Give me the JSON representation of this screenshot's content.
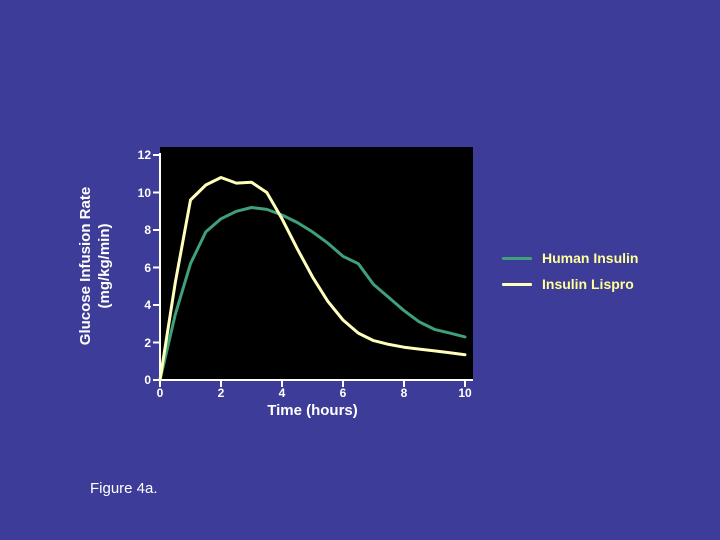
{
  "slide": {
    "caption": "Figure 4a."
  },
  "colors": {
    "background": "#3e3c99",
    "plot_background": "#000000",
    "axis": "#ffffff",
    "text": "#ffffff",
    "legend_text": "#ffff99",
    "human_insulin_line": "#3fa07a",
    "insulin_lispro_line": "#ffffbb"
  },
  "chart_data": {
    "type": "line",
    "title": "",
    "xlabel": "Time (hours)",
    "ylabel": "Glucose Infusion Rate (mg/kg/min)",
    "ylabel_line1": "Glucose Infusion Rate",
    "ylabel_line2": "(mg/kg/min)",
    "xlim": [
      0,
      10
    ],
    "ylim": [
      0,
      12
    ],
    "x_ticks": [
      0,
      2,
      4,
      6,
      8,
      10
    ],
    "y_ticks": [
      0,
      2,
      4,
      6,
      8,
      10,
      12
    ],
    "grid": false,
    "legend_position": "right",
    "plot_background": "#000000",
    "axis_color": "#ffffff",
    "x": [
      0,
      0.5,
      1,
      1.5,
      2,
      2.5,
      3,
      3.5,
      4,
      4.5,
      5,
      5.5,
      6,
      6.5,
      7,
      7.5,
      8,
      8.5,
      9,
      9.5,
      10
    ],
    "series": [
      {
        "name": "Human Insulin",
        "color": "#3fa07a",
        "values": [
          0,
          3.5,
          6.2,
          7.9,
          8.6,
          9.0,
          9.2,
          9.1,
          8.8,
          8.4,
          7.9,
          7.3,
          6.6,
          6.2,
          5.1,
          4.4,
          3.7,
          3.1,
          2.7,
          2.5,
          2.3
        ]
      },
      {
        "name": "Insulin Lispro",
        "color": "#ffffbb",
        "values": [
          0,
          5.2,
          9.6,
          10.4,
          10.8,
          10.5,
          10.55,
          10.0,
          8.6,
          7.0,
          5.5,
          4.2,
          3.2,
          2.5,
          2.1,
          1.9,
          1.75,
          1.65,
          1.55,
          1.45,
          1.35
        ]
      }
    ]
  }
}
